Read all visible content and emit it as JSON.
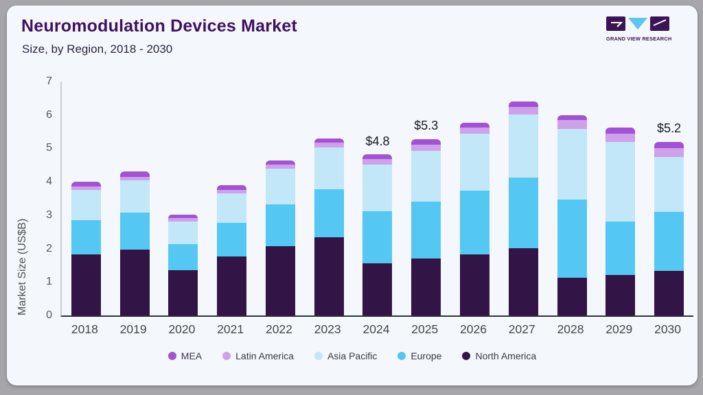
{
  "header": {
    "title": "Neuromodulation Devices Market",
    "subtitle": "Size, by Region, 2018 - 2030",
    "logo_text": "GRAND VIEW RESEARCH"
  },
  "colors": {
    "card_bg": "#f4f7fb",
    "page_bg": "#a7a7ab",
    "title": "#3f1160",
    "mea": "#a352d6",
    "latin_america": "#cda2e8",
    "asia_pacific": "#c2e7f8",
    "europe": "#54c8f2",
    "north_america": "#321447"
  },
  "chart_data": {
    "type": "bar",
    "stacked": true,
    "title": "Neuromodulation Devices Market Size, by Region, 2018 - 2030",
    "xlabel": "",
    "ylabel": "Market Size (US$B)",
    "ylim": [
      0,
      7
    ],
    "yticks": [
      0,
      1,
      2,
      3,
      4,
      5,
      6,
      7
    ],
    "grid": false,
    "legend_position": "bottom",
    "categories": [
      "2018",
      "2019",
      "2020",
      "2021",
      "2022",
      "2023",
      "2024",
      "2025",
      "2026",
      "2027",
      "2028",
      "2029",
      "2030"
    ],
    "series": [
      {
        "name": "North America",
        "color": "#321447",
        "values": [
          1.82,
          1.97,
          1.36,
          1.77,
          2.08,
          2.34,
          1.55,
          1.7,
          1.83,
          2.01,
          1.12,
          1.21,
          1.33
        ]
      },
      {
        "name": "Europe",
        "color": "#54c8f2",
        "values": [
          1.03,
          1.11,
          0.78,
          1.0,
          1.25,
          1.44,
          1.55,
          1.71,
          1.91,
          2.12,
          2.35,
          1.6,
          1.77
        ]
      },
      {
        "name": "Asia Pacific",
        "color": "#c2e7f8",
        "values": [
          0.9,
          0.97,
          0.68,
          0.89,
          1.06,
          1.25,
          1.39,
          1.52,
          1.7,
          1.89,
          2.11,
          2.38,
          1.64
        ]
      },
      {
        "name": "Latin America",
        "color": "#cda2e8",
        "values": [
          0.11,
          0.1,
          0.1,
          0.1,
          0.13,
          0.14,
          0.17,
          0.18,
          0.19,
          0.22,
          0.27,
          0.25,
          0.27
        ]
      },
      {
        "name": "MEA",
        "color": "#a352d6",
        "values": [
          0.14,
          0.17,
          0.1,
          0.14,
          0.13,
          0.13,
          0.14,
          0.17,
          0.15,
          0.16,
          0.15,
          0.18,
          0.19
        ]
      }
    ],
    "legend_order": [
      "MEA",
      "Latin America",
      "Asia Pacific",
      "Europe",
      "North America"
    ],
    "annotations": [
      {
        "category": "2024",
        "label": "$4.8"
      },
      {
        "category": "2025",
        "label": "$5.3"
      },
      {
        "category": "2030",
        "label": "$5.2"
      }
    ]
  }
}
